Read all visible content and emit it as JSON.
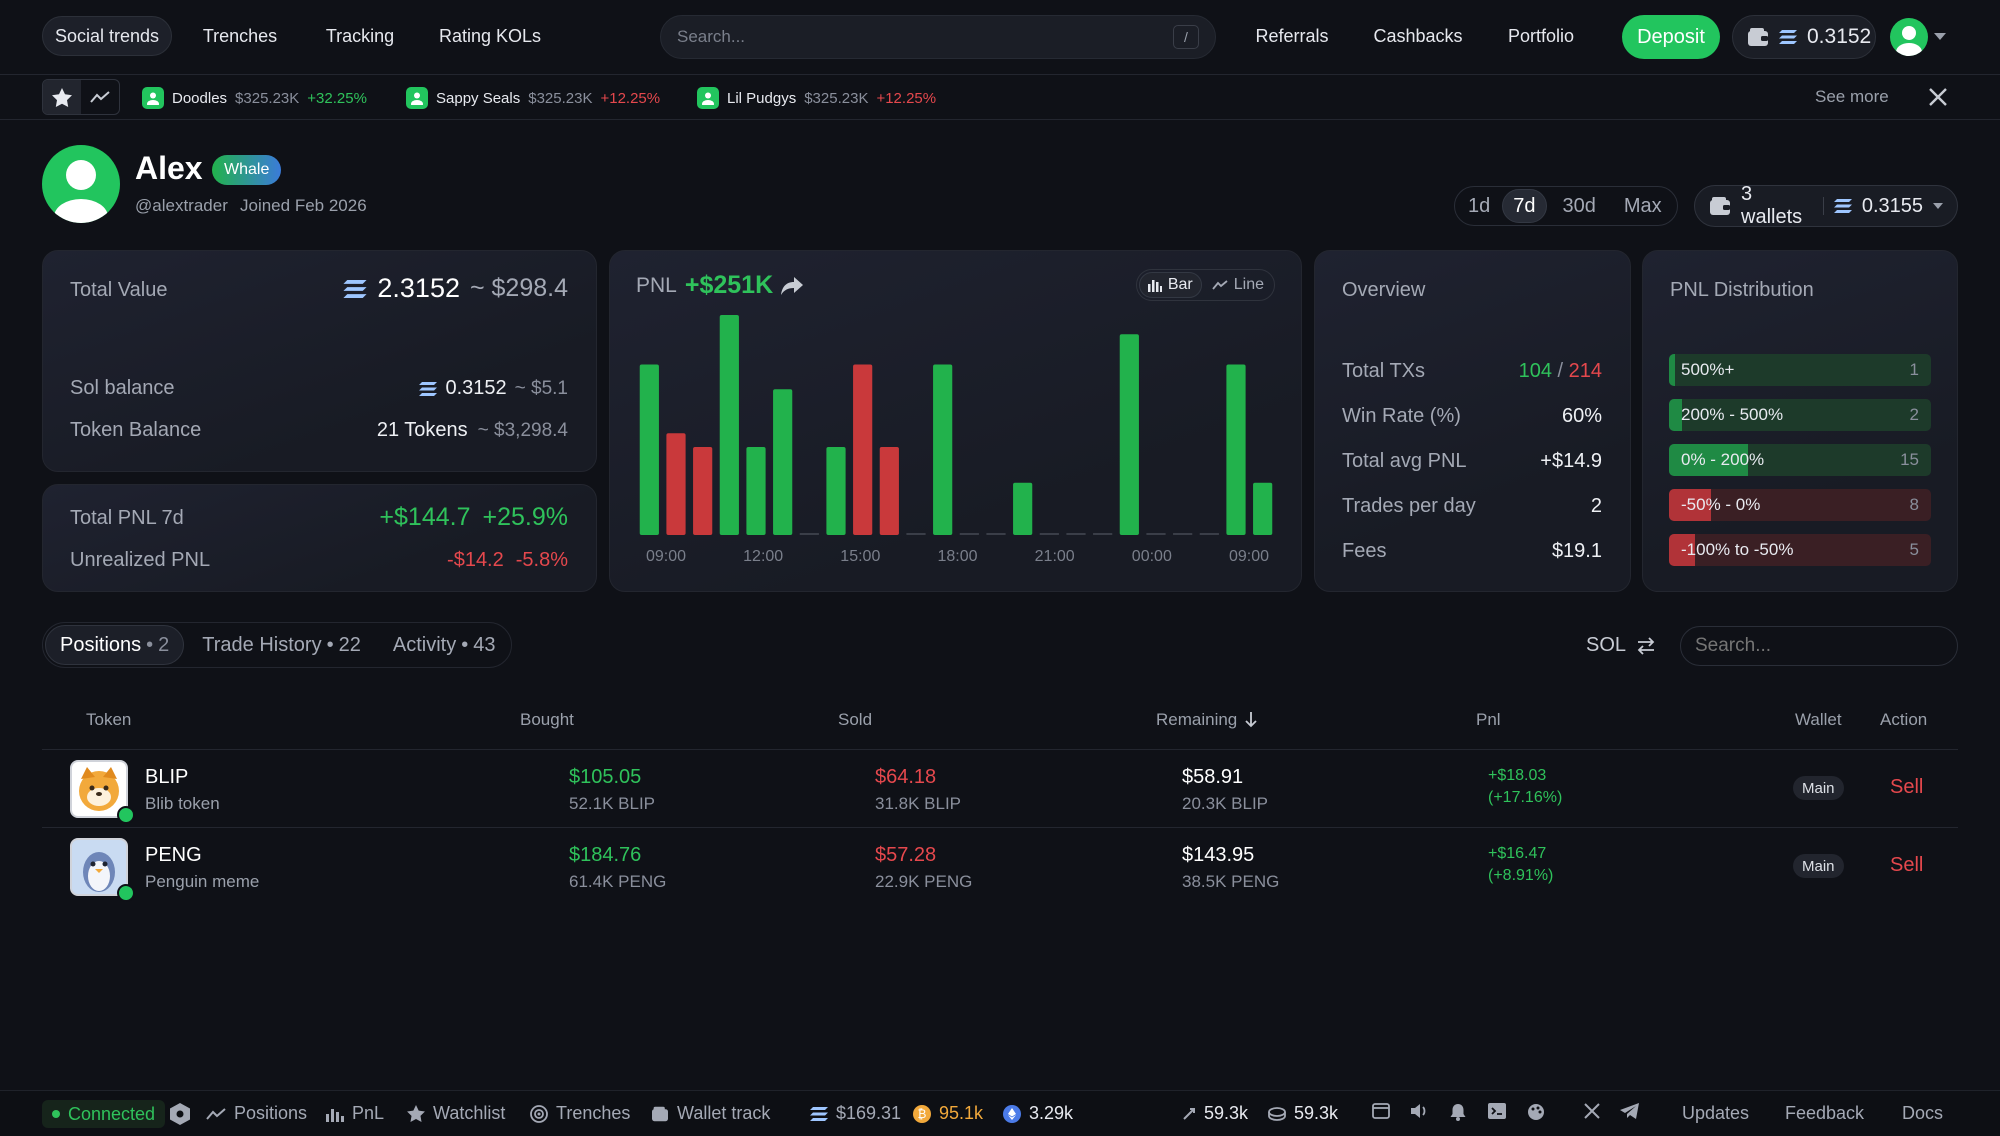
{
  "nav": {
    "left": [
      "Social trends",
      "Trenches",
      "Tracking",
      "Rating KOLs"
    ],
    "search_placeholder": "Search...",
    "search_key": "/",
    "right": [
      "Referrals",
      "Cashbacks",
      "Portfolio"
    ],
    "deposit": "Deposit",
    "balance": "0.3152"
  },
  "ticker": {
    "items": [
      {
        "name": "Doodles",
        "price": "$325.23K",
        "change": "+32.25%",
        "trend": "up"
      },
      {
        "name": "Sappy Seals",
        "price": "$325.23K",
        "change": "+12.25%",
        "trend": "down"
      },
      {
        "name": "Lil Pudgys",
        "price": "$325.23K",
        "change": "+12.25%",
        "trend": "down"
      }
    ],
    "see_more": "See more"
  },
  "profile": {
    "name": "Alex",
    "badge": "Whale",
    "handle": "@alextrader",
    "joined": "Joined Feb 2026",
    "timeframes": [
      "1d",
      "7d",
      "30d",
      "Max"
    ],
    "active_timeframe": "7d",
    "wallets_label": "3 wallets",
    "wallets_balance": "0.3155"
  },
  "value_card": {
    "title": "Total Value",
    "sol": "2.3152",
    "usd": "~ $298.4",
    "sol_balance_label": "Sol balance",
    "sol_balance": "0.3152",
    "sol_balance_usd": "~ $5.1",
    "token_balance_label": "Token Balance",
    "token_balance": "21 Tokens",
    "token_balance_usd": "~ $3,298.4"
  },
  "pnl_card": {
    "title": "Total PNL 7d",
    "value": "+$144.7",
    "pct": "+25.9%",
    "unrealized_label": "Unrealized PNL",
    "unrealized": "-$14.2",
    "unrealized_pct": "-5.8%"
  },
  "chart_card": {
    "title": "PNL",
    "value": "+$251K",
    "toggle": [
      "Bar",
      "Line"
    ],
    "active_toggle": "Bar"
  },
  "chart_data": {
    "type": "bar",
    "x_ticks": [
      "09:00",
      "12:00",
      "15:00",
      "18:00",
      "21:00",
      "00:00",
      "09:00"
    ],
    "bars": [
      {
        "v": 62,
        "s": "up"
      },
      {
        "v": 37,
        "s": "down"
      },
      {
        "v": 32,
        "s": "down"
      },
      {
        "v": 80,
        "s": "up"
      },
      {
        "v": 32,
        "s": "up"
      },
      {
        "v": 53,
        "s": "up"
      },
      {
        "v": 0,
        "s": "flat"
      },
      {
        "v": 32,
        "s": "up"
      },
      {
        "v": 62,
        "s": "down"
      },
      {
        "v": 32,
        "s": "down"
      },
      {
        "v": 0,
        "s": "flat"
      },
      {
        "v": 62,
        "s": "up"
      },
      {
        "v": 0,
        "s": "flat"
      },
      {
        "v": 0,
        "s": "flat"
      },
      {
        "v": 19,
        "s": "up"
      },
      {
        "v": 0,
        "s": "flat"
      },
      {
        "v": 0,
        "s": "flat"
      },
      {
        "v": 0,
        "s": "flat"
      },
      {
        "v": 73,
        "s": "up"
      },
      {
        "v": 0,
        "s": "flat"
      },
      {
        "v": 0,
        "s": "flat"
      },
      {
        "v": 0,
        "s": "flat"
      },
      {
        "v": 62,
        "s": "up"
      },
      {
        "v": 19,
        "s": "up"
      }
    ],
    "colors": {
      "up": "#22b24c",
      "down": "#c9393b",
      "flat": "#3a3e48"
    }
  },
  "overview": {
    "title": "Overview",
    "rows": [
      {
        "label": "Total TXs",
        "wins": "104",
        "sep": " / ",
        "losses": "214"
      },
      {
        "label": "Win Rate (%)",
        "value": "60%",
        "tone": "white"
      },
      {
        "label": "Total avg PNL",
        "value": "+$14.9",
        "tone": "green"
      },
      {
        "label": "Trades per day",
        "value": "2",
        "tone": "white"
      },
      {
        "label": "Fees",
        "value": "$19.1",
        "tone": "white"
      }
    ]
  },
  "distribution": {
    "title": "PNL Distribution",
    "rows": [
      {
        "label": "500%+",
        "count": "1",
        "fill": 0.02,
        "tone": "green"
      },
      {
        "label": "200% - 500%",
        "count": "2",
        "fill": 0.05,
        "tone": "green"
      },
      {
        "label": "0% - 200%",
        "count": "15",
        "fill": 0.3,
        "tone": "green"
      },
      {
        "label": "-50% - 0%",
        "count": "8",
        "fill": 0.16,
        "tone": "red"
      },
      {
        "label": "-100% to -50%",
        "count": "5",
        "fill": 0.1,
        "tone": "red"
      }
    ]
  },
  "tabs": [
    {
      "label": "Positions",
      "count": "2"
    },
    {
      "label": "Trade History",
      "count": "22"
    },
    {
      "label": "Activity",
      "count": "43"
    }
  ],
  "currency_toggle": "SOL",
  "table_search_placeholder": "Search...",
  "table": {
    "headers": [
      "Token",
      "Bought",
      "Sold",
      "Remaining",
      "Pnl",
      "Wallet",
      "Action"
    ],
    "rows": [
      {
        "symbol": "BLIP",
        "name": "Blib token",
        "bought": "$105.05",
        "bought_qty": "52.1K BLIP",
        "sold": "$64.18",
        "sold_qty": "31.8K BLIP",
        "remaining": "$58.91",
        "remaining_qty": "20.3K BLIP",
        "pnl": "+$18.03",
        "pnl_pct": "(+17.16%)",
        "wallet": "Main",
        "action": "Sell"
      },
      {
        "symbol": "PENG",
        "name": "Penguin meme",
        "bought": "$184.76",
        "bought_qty": "61.4K PENG",
        "sold": "$57.28",
        "sold_qty": "22.9K PENG",
        "remaining": "$143.95",
        "remaining_qty": "38.5K PENG",
        "pnl": "+$16.47",
        "pnl_pct": "(+8.91%)",
        "wallet": "Main",
        "action": "Sell"
      }
    ]
  },
  "bottombar": {
    "status": "Connected",
    "links": [
      "Positions",
      "PnL",
      "Watchlist",
      "Trenches",
      "Wallet track"
    ],
    "sol_price": "$169.31",
    "btc_price": "95.1k",
    "eth_price": "3.29k",
    "stat1": "59.3k",
    "stat2": "59.3k",
    "right": [
      "Updates",
      "Feedback",
      "Docs"
    ]
  }
}
